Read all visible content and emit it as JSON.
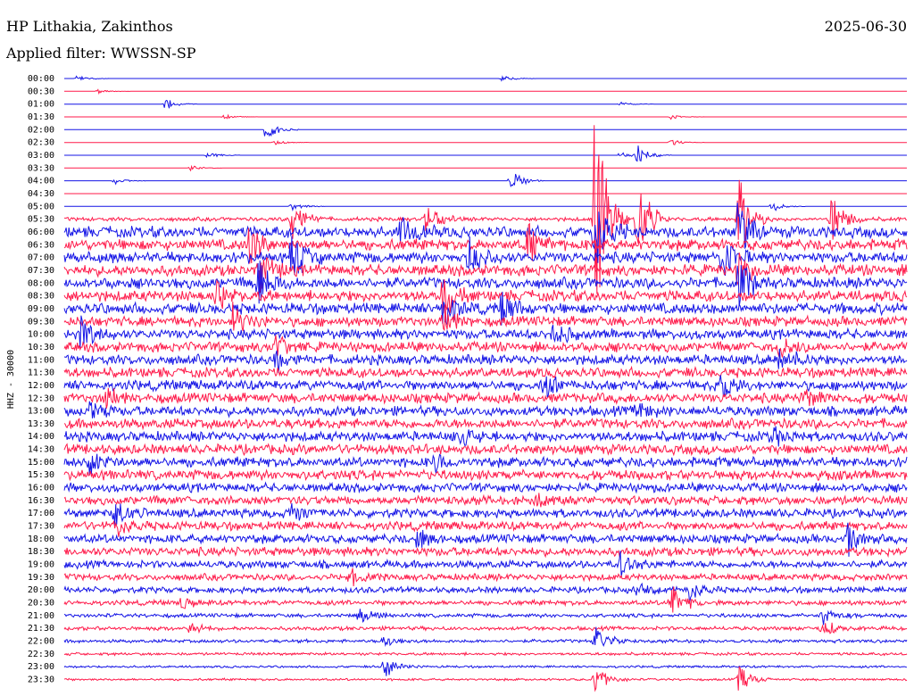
{
  "header": {
    "station": "HP Lithakia, Zakinthos",
    "filter": "Applied filter: WWSSN-SP",
    "date": "2025-06-30"
  },
  "chart_data": {
    "type": "line",
    "title": "HP Lithakia, Zakinthos",
    "subtitle": "Applied filter: WWSSN-SP",
    "date": "2025-06-30",
    "ylabel": "HHZ - 30000",
    "rows": [
      "00:00",
      "00:30",
      "01:00",
      "01:30",
      "02:00",
      "02:30",
      "03:00",
      "03:30",
      "04:00",
      "04:30",
      "05:00",
      "05:30",
      "06:00",
      "06:30",
      "07:00",
      "07:30",
      "08:00",
      "08:30",
      "09:00",
      "09:30",
      "10:00",
      "10:30",
      "11:00",
      "11:30",
      "12:00",
      "12:30",
      "13:00",
      "13:30",
      "14:00",
      "14:30",
      "15:00",
      "15:30",
      "16:00",
      "16:30",
      "17:00",
      "17:30",
      "18:00",
      "18:30",
      "19:00",
      "19:30",
      "20:00",
      "20:30",
      "21:00",
      "21:30",
      "22:00",
      "22:30",
      "23:00",
      "23:30"
    ],
    "series_colors": [
      "#1414e6",
      "#ff1a4a"
    ],
    "noise_level": [
      0,
      0,
      0,
      0,
      0,
      0,
      0,
      0,
      0,
      0,
      0,
      0.35,
      1,
      1,
      1,
      1,
      1,
      1,
      1,
      0.9,
      0.9,
      0.9,
      0.9,
      0.9,
      0.9,
      0.9,
      0.9,
      0.9,
      0.9,
      0.9,
      0.9,
      0.9,
      0.8,
      0.8,
      0.8,
      0.8,
      0.8,
      0.8,
      0.7,
      0.6,
      0.55,
      0.45,
      0.35,
      0.35,
      0.3,
      0.25,
      0.2,
      0.2
    ],
    "events": [
      {
        "row": 0,
        "t": 0.015,
        "amp": 5
      },
      {
        "row": 0,
        "t": 0.52,
        "amp": 5
      },
      {
        "row": 1,
        "t": 0.04,
        "amp": 3
      },
      {
        "row": 2,
        "t": 0.12,
        "amp": 8
      },
      {
        "row": 2,
        "t": 0.66,
        "amp": 4
      },
      {
        "row": 3,
        "t": 0.19,
        "amp": 3
      },
      {
        "row": 3,
        "t": 0.72,
        "amp": 3
      },
      {
        "row": 4,
        "t": 0.24,
        "amp": 18
      },
      {
        "row": 5,
        "t": 0.25,
        "amp": 4
      },
      {
        "row": 5,
        "t": 0.72,
        "amp": 5
      },
      {
        "row": 6,
        "t": 0.17,
        "amp": 5
      },
      {
        "row": 6,
        "t": 0.66,
        "amp": 6
      },
      {
        "row": 6,
        "t": 0.68,
        "amp": 14
      },
      {
        "row": 7,
        "t": 0.15,
        "amp": 4
      },
      {
        "row": 8,
        "t": 0.06,
        "amp": 6
      },
      {
        "row": 8,
        "t": 0.53,
        "amp": 16
      },
      {
        "row": 10,
        "t": 0.27,
        "amp": 6
      },
      {
        "row": 10,
        "t": 0.84,
        "amp": 8
      },
      {
        "row": 11,
        "t": 0.63,
        "amp": 175
      },
      {
        "row": 11,
        "t": 0.68,
        "amp": 70
      },
      {
        "row": 11,
        "t": 0.27,
        "amp": 30
      },
      {
        "row": 11,
        "t": 0.43,
        "amp": 25
      },
      {
        "row": 11,
        "t": 0.8,
        "amp": 60
      },
      {
        "row": 11,
        "t": 0.91,
        "amp": 40
      },
      {
        "row": 12,
        "t": 0.63,
        "amp": 60
      },
      {
        "row": 12,
        "t": 0.4,
        "amp": 25
      },
      {
        "row": 12,
        "t": 0.8,
        "amp": 40
      },
      {
        "row": 13,
        "t": 0.22,
        "amp": 30
      },
      {
        "row": 13,
        "t": 0.55,
        "amp": 25
      },
      {
        "row": 14,
        "t": 0.27,
        "amp": 35
      },
      {
        "row": 14,
        "t": 0.48,
        "amp": 25
      },
      {
        "row": 14,
        "t": 0.78,
        "amp": 30
      },
      {
        "row": 15,
        "t": 0.23,
        "amp": 30
      },
      {
        "row": 15,
        "t": 0.8,
        "amp": 25
      },
      {
        "row": 16,
        "t": 0.23,
        "amp": 35
      },
      {
        "row": 16,
        "t": 0.8,
        "amp": 35
      },
      {
        "row": 17,
        "t": 0.45,
        "amp": 30
      },
      {
        "row": 17,
        "t": 0.18,
        "amp": 20
      },
      {
        "row": 18,
        "t": 0.45,
        "amp": 30
      },
      {
        "row": 18,
        "t": 0.52,
        "amp": 25
      },
      {
        "row": 19,
        "t": 0.2,
        "amp": 20
      },
      {
        "row": 19,
        "t": 0.45,
        "amp": 20
      },
      {
        "row": 20,
        "t": 0.02,
        "amp": 20
      },
      {
        "row": 20,
        "t": 0.58,
        "amp": 15
      },
      {
        "row": 21,
        "t": 0.25,
        "amp": 18
      },
      {
        "row": 21,
        "t": 0.85,
        "amp": 15
      },
      {
        "row": 22,
        "t": 0.85,
        "amp": 20
      },
      {
        "row": 22,
        "t": 0.25,
        "amp": 15
      },
      {
        "row": 24,
        "t": 0.78,
        "amp": 18
      },
      {
        "row": 24,
        "t": 0.57,
        "amp": 15
      },
      {
        "row": 25,
        "t": 0.05,
        "amp": 15
      },
      {
        "row": 25,
        "t": 0.88,
        "amp": 12
      },
      {
        "row": 26,
        "t": 0.03,
        "amp": 12
      },
      {
        "row": 26,
        "t": 0.68,
        "amp": 12
      },
      {
        "row": 28,
        "t": 0.84,
        "amp": 12
      },
      {
        "row": 28,
        "t": 0.47,
        "amp": 10
      },
      {
        "row": 30,
        "t": 0.03,
        "amp": 15
      },
      {
        "row": 30,
        "t": 0.44,
        "amp": 12
      },
      {
        "row": 33,
        "t": 0.56,
        "amp": 15
      },
      {
        "row": 34,
        "t": 0.06,
        "amp": 20
      },
      {
        "row": 34,
        "t": 0.27,
        "amp": 15
      },
      {
        "row": 35,
        "t": 0.06,
        "amp": 15
      },
      {
        "row": 36,
        "t": 0.42,
        "amp": 14
      },
      {
        "row": 36,
        "t": 0.93,
        "amp": 18
      },
      {
        "row": 38,
        "t": 0.66,
        "amp": 15
      },
      {
        "row": 39,
        "t": 0.34,
        "amp": 10
      },
      {
        "row": 40,
        "t": 0.74,
        "amp": 18
      },
      {
        "row": 40,
        "t": 0.68,
        "amp": 12
      },
      {
        "row": 41,
        "t": 0.14,
        "amp": 10
      },
      {
        "row": 41,
        "t": 0.72,
        "amp": 25
      },
      {
        "row": 42,
        "t": 0.35,
        "amp": 12
      },
      {
        "row": 42,
        "t": 0.9,
        "amp": 12
      },
      {
        "row": 43,
        "t": 0.15,
        "amp": 10
      },
      {
        "row": 43,
        "t": 0.9,
        "amp": 12
      },
      {
        "row": 44,
        "t": 0.38,
        "amp": 8
      },
      {
        "row": 44,
        "t": 0.63,
        "amp": 25
      },
      {
        "row": 46,
        "t": 0.38,
        "amp": 15
      },
      {
        "row": 47,
        "t": 0.63,
        "amp": 20
      },
      {
        "row": 47,
        "t": 0.8,
        "amp": 20
      }
    ]
  }
}
